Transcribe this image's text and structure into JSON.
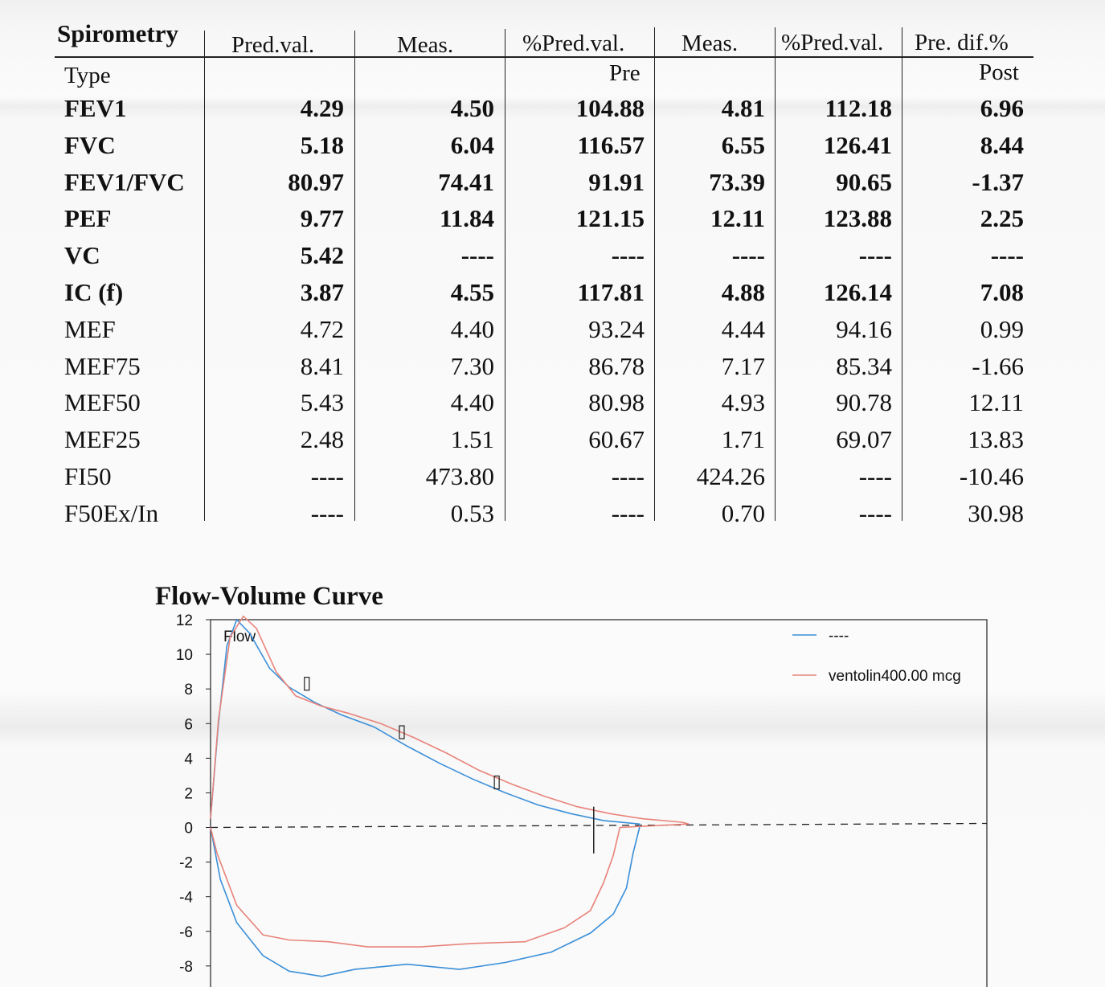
{
  "table": {
    "headers": {
      "section_title": "Spirometry",
      "pred_val": "Pred.val.",
      "meas_pre": "Meas.",
      "pct_pred_pre": "%Pred.val.",
      "meas_post": "Meas.",
      "pct_pred_post": "%Pred.val.",
      "pre_dif": "Pre. dif.%"
    },
    "subheaders": {
      "type": "Type",
      "pre": "Pre",
      "post": "Post"
    },
    "rows": [
      {
        "name": "FEV1",
        "bold": true,
        "pred": "4.29",
        "meas_pre": "4.50",
        "pct_pre": "104.88",
        "meas_post": "4.81",
        "pct_post": "112.18",
        "dif": "6.96"
      },
      {
        "name": "FVC",
        "bold": true,
        "pred": "5.18",
        "meas_pre": "6.04",
        "pct_pre": "116.57",
        "meas_post": "6.55",
        "pct_post": "126.41",
        "dif": "8.44"
      },
      {
        "name": "FEV1/FVC",
        "bold": true,
        "pred": "80.97",
        "meas_pre": "74.41",
        "pct_pre": "91.91",
        "meas_post": "73.39",
        "pct_post": "90.65",
        "dif": "-1.37"
      },
      {
        "name": "PEF",
        "bold": true,
        "pred": "9.77",
        "meas_pre": "11.84",
        "pct_pre": "121.15",
        "meas_post": "12.11",
        "pct_post": "123.88",
        "dif": "2.25"
      },
      {
        "name": "VC",
        "bold": true,
        "pred": "5.42",
        "meas_pre": "----",
        "pct_pre": "----",
        "meas_post": "----",
        "pct_post": "----",
        "dif": "----"
      },
      {
        "name": "IC  (f)",
        "bold": true,
        "pred": "3.87",
        "meas_pre": "4.55",
        "pct_pre": "117.81",
        "meas_post": "4.88",
        "pct_post": "126.14",
        "dif": "7.08"
      },
      {
        "name": "MEF",
        "bold": false,
        "pred": "4.72",
        "meas_pre": "4.40",
        "pct_pre": "93.24",
        "meas_post": "4.44",
        "pct_post": "94.16",
        "dif": "0.99"
      },
      {
        "name": "MEF75",
        "bold": false,
        "pred": "8.41",
        "meas_pre": "7.30",
        "pct_pre": "86.78",
        "meas_post": "7.17",
        "pct_post": "85.34",
        "dif": "-1.66"
      },
      {
        "name": "MEF50",
        "bold": false,
        "pred": "5.43",
        "meas_pre": "4.40",
        "pct_pre": "80.98",
        "meas_post": "4.93",
        "pct_post": "90.78",
        "dif": "12.11"
      },
      {
        "name": "MEF25",
        "bold": false,
        "pred": "2.48",
        "meas_pre": "1.51",
        "pct_pre": "60.67",
        "meas_post": "1.71",
        "pct_post": "69.07",
        "dif": "13.83"
      },
      {
        "name": "FI50",
        "bold": false,
        "pred": "----",
        "meas_pre": "473.80",
        "pct_pre": "----",
        "meas_post": "424.26",
        "pct_post": "----",
        "dif": "-10.46"
      },
      {
        "name": "F50Ex/In",
        "bold": false,
        "pred": "----",
        "meas_pre": "0.53",
        "pct_pre": "----",
        "meas_post": "0.70",
        "pct_post": "----",
        "dif": "30.98"
      }
    ]
  },
  "chart_data": {
    "type": "line",
    "title": "Flow-Volume Curve",
    "ylabel": "Flow",
    "xlabel": "",
    "ylim": [
      -9.5,
      12
    ],
    "yticks": [
      12,
      10,
      8,
      6,
      4,
      2,
      0,
      -2,
      -4,
      -6,
      -8
    ],
    "x_unit": "L (volume, tick labels not visible)",
    "grid": false,
    "legend_position": "top-right",
    "series": [
      {
        "name": "----",
        "color": "#3a8fd8",
        "points": [
          [
            0,
            0.5
          ],
          [
            0.12,
            6
          ],
          [
            0.25,
            10.5
          ],
          [
            0.4,
            12.0
          ],
          [
            0.6,
            11.2
          ],
          [
            0.9,
            9.2
          ],
          [
            1.2,
            8.1
          ],
          [
            1.6,
            7.2
          ],
          [
            2.0,
            6.5
          ],
          [
            2.5,
            5.8
          ],
          [
            3.0,
            4.7
          ],
          [
            3.5,
            3.7
          ],
          [
            4.0,
            2.8
          ],
          [
            4.5,
            2.0
          ],
          [
            5.0,
            1.3
          ],
          [
            5.5,
            0.8
          ],
          [
            6.0,
            0.4
          ],
          [
            6.55,
            0.2
          ],
          [
            6.55,
            0.0
          ],
          [
            6.45,
            -1.5
          ],
          [
            6.35,
            -3.5
          ],
          [
            6.15,
            -5.0
          ],
          [
            5.8,
            -6.1
          ],
          [
            5.2,
            -7.2
          ],
          [
            4.5,
            -7.8
          ],
          [
            3.8,
            -8.2
          ],
          [
            3.0,
            -7.9
          ],
          [
            2.2,
            -8.2
          ],
          [
            1.7,
            -8.6
          ],
          [
            1.2,
            -8.3
          ],
          [
            0.8,
            -7.4
          ],
          [
            0.4,
            -5.5
          ],
          [
            0.15,
            -3.0
          ],
          [
            0,
            0
          ]
        ]
      },
      {
        "name": "ventolin400.00 mcg",
        "color": "#e8837a",
        "points": [
          [
            0,
            0.5
          ],
          [
            0.12,
            6.2
          ],
          [
            0.3,
            11.0
          ],
          [
            0.5,
            12.2
          ],
          [
            0.7,
            11.5
          ],
          [
            1.0,
            9.0
          ],
          [
            1.3,
            7.6
          ],
          [
            1.7,
            7.0
          ],
          [
            2.1,
            6.6
          ],
          [
            2.6,
            6.0
          ],
          [
            3.1,
            5.2
          ],
          [
            3.6,
            4.3
          ],
          [
            4.1,
            3.3
          ],
          [
            4.6,
            2.5
          ],
          [
            5.1,
            1.8
          ],
          [
            5.6,
            1.2
          ],
          [
            6.1,
            0.8
          ],
          [
            6.6,
            0.5
          ],
          [
            7.2,
            0.3
          ],
          [
            7.3,
            0.2
          ],
          [
            6.25,
            0.0
          ],
          [
            6.15,
            -1.6
          ],
          [
            6.0,
            -3.2
          ],
          [
            5.8,
            -4.8
          ],
          [
            5.4,
            -5.8
          ],
          [
            4.8,
            -6.6
          ],
          [
            4.0,
            -6.7
          ],
          [
            3.2,
            -6.9
          ],
          [
            2.4,
            -6.9
          ],
          [
            1.8,
            -6.6
          ],
          [
            1.2,
            -6.5
          ],
          [
            0.8,
            -6.2
          ],
          [
            0.4,
            -4.5
          ],
          [
            0.1,
            -1.5
          ],
          [
            0,
            0
          ]
        ]
      }
    ],
    "markers": [
      {
        "x": 1.47,
        "y": 8.3
      },
      {
        "x": 2.92,
        "y": 5.5
      },
      {
        "x": 4.37,
        "y": 2.6
      }
    ],
    "baseline_y": 0,
    "fvc_marker_x": 5.85
  }
}
